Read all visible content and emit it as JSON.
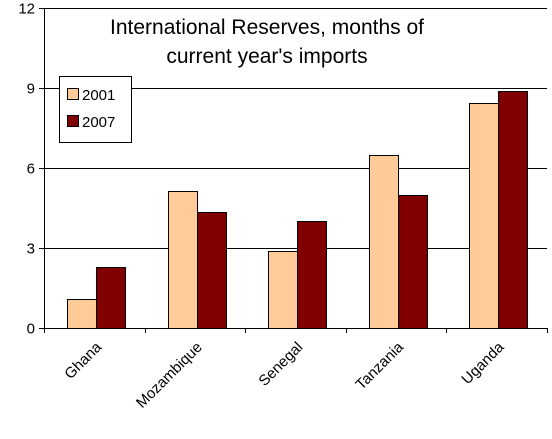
{
  "chart_data": {
    "type": "bar",
    "title_lines": [
      "International Reserves, months of",
      "current year's imports"
    ],
    "categories": [
      "Ghana",
      "Mozambique",
      "Senegal",
      "Tanzania",
      "Uganda"
    ],
    "series": [
      {
        "name": "2001",
        "color": "#FFCC99",
        "values": [
          1.1,
          5.15,
          2.9,
          6.5,
          8.45
        ]
      },
      {
        "name": "2007",
        "color": "#800000",
        "values": [
          2.3,
          4.35,
          4.0,
          5.0,
          8.9
        ]
      }
    ],
    "ylim": [
      0,
      12
    ],
    "yticks": [
      0,
      3,
      6,
      9,
      12
    ],
    "grid": true,
    "legend_position": "upper-left"
  }
}
